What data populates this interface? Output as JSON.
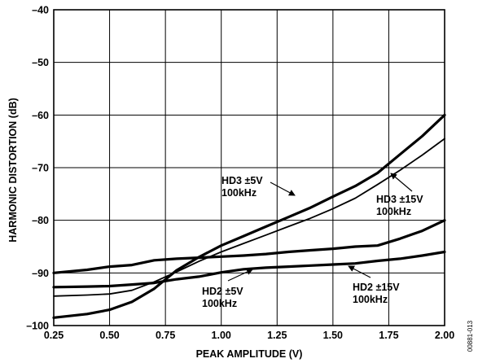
{
  "chart_data": {
    "type": "line",
    "title": "",
    "xlabel": "PEAK AMPLITUDE (V)",
    "ylabel": "HARMONIC DISTORTION (dB)",
    "xlim": [
      0.25,
      2.0
    ],
    "ylim": [
      -100,
      -40
    ],
    "x_ticks": [
      "0.25",
      "0.50",
      "0.75",
      "1.00",
      "1.25",
      "1.50",
      "1.75",
      "2.00"
    ],
    "y_ticks": [
      "–40",
      "–50",
      "–60",
      "–70",
      "–80",
      "–90",
      "–100"
    ],
    "grid": true,
    "legend": "none",
    "series": [
      {
        "name": "HD3 ±5V 100kHz",
        "line_weight": "bold",
        "x": [
          0.25,
          0.4,
          0.5,
          0.6,
          0.7,
          0.8,
          0.9,
          1.0,
          1.1,
          1.2,
          1.3,
          1.4,
          1.5,
          1.6,
          1.7,
          1.8,
          1.9,
          2.0
        ],
        "y": [
          -98.5,
          -97.8,
          -97.0,
          -95.5,
          -93.0,
          -89.5,
          -87.0,
          -84.8,
          -83.0,
          -81.2,
          -79.4,
          -77.6,
          -75.5,
          -73.5,
          -71.0,
          -67.5,
          -64.0,
          -60.0
        ]
      },
      {
        "name": "HD3 ±15V 100kHz",
        "line_weight": "thin",
        "x": [
          0.25,
          0.4,
          0.5,
          0.6,
          0.7,
          0.8,
          0.9,
          1.0,
          1.1,
          1.2,
          1.3,
          1.4,
          1.5,
          1.6,
          1.7,
          1.8,
          1.9,
          2.0
        ],
        "y": [
          -94.4,
          -94.2,
          -94.0,
          -93.3,
          -91.7,
          -89.8,
          -87.8,
          -86.0,
          -84.4,
          -82.8,
          -81.2,
          -79.6,
          -77.8,
          -75.8,
          -73.2,
          -70.5,
          -67.6,
          -64.5
        ]
      },
      {
        "name": "HD2 ±5V 100kHz",
        "line_weight": "bold",
        "x": [
          0.25,
          0.4,
          0.5,
          0.6,
          0.7,
          0.8,
          0.9,
          1.0,
          1.1,
          1.2,
          1.3,
          1.4,
          1.5,
          1.6,
          1.7,
          1.8,
          1.9,
          2.0
        ],
        "y": [
          -92.7,
          -92.6,
          -92.5,
          -92.2,
          -91.9,
          -91.2,
          -90.7,
          -89.9,
          -89.3,
          -89.0,
          -88.8,
          -88.6,
          -88.4,
          -88.2,
          -87.7,
          -87.3,
          -86.7,
          -86.0
        ]
      },
      {
        "name": "HD2 ±15V 100kHz",
        "line_weight": "bold",
        "x": [
          0.25,
          0.4,
          0.5,
          0.6,
          0.7,
          0.8,
          0.9,
          1.0,
          1.1,
          1.2,
          1.3,
          1.4,
          1.5,
          1.6,
          1.7,
          1.8,
          1.9,
          2.0
        ],
        "y": [
          -90.0,
          -89.4,
          -88.8,
          -88.5,
          -87.6,
          -87.3,
          -87.1,
          -86.9,
          -86.7,
          -86.4,
          -86.0,
          -85.7,
          -85.4,
          -85.0,
          -84.8,
          -83.5,
          -82.0,
          -80.0
        ]
      }
    ],
    "annotations": [
      {
        "lines": [
          "HD3 ±5V",
          "100kHz"
        ]
      },
      {
        "lines": [
          "HD3 ±15V",
          "100kHz"
        ]
      },
      {
        "lines": [
          "HD2 ±5V",
          "100kHz"
        ]
      },
      {
        "lines": [
          "HD2 ±15V",
          "100kHz"
        ]
      }
    ],
    "figure_id": "00881-013"
  }
}
